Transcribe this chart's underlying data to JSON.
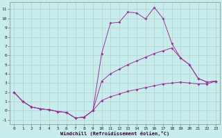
{
  "xlabel": "Windchill (Refroidissement éolien,°C)",
  "background_color": "#c8ecec",
  "grid_color": "#b0d0d0",
  "line_color": "#993399",
  "xlim": [
    -0.5,
    23.5
  ],
  "ylim": [
    -1.5,
    11.8
  ],
  "xticks": [
    0,
    1,
    2,
    3,
    4,
    5,
    6,
    7,
    8,
    9,
    10,
    11,
    12,
    13,
    14,
    15,
    16,
    17,
    18,
    19,
    20,
    21,
    22,
    23
  ],
  "yticks": [
    -1,
    0,
    1,
    2,
    3,
    4,
    5,
    6,
    7,
    8,
    9,
    10,
    11
  ],
  "line1_x": [
    0,
    1,
    2,
    3,
    4,
    5,
    6,
    7,
    8,
    9,
    10,
    11,
    12,
    13,
    14,
    15,
    16,
    17,
    18,
    19,
    20,
    21,
    22,
    23
  ],
  "line1_y": [
    2.0,
    1.0,
    0.4,
    0.2,
    0.1,
    -0.1,
    -0.2,
    -0.8,
    -0.7,
    0.0,
    6.2,
    9.5,
    9.6,
    10.7,
    10.6,
    9.95,
    11.2,
    10.0,
    7.3,
    5.7,
    5.0,
    3.5,
    3.1,
    3.2
  ],
  "line2_x": [
    0,
    1,
    2,
    3,
    4,
    5,
    6,
    7,
    8,
    9,
    10,
    11,
    12,
    13,
    14,
    15,
    16,
    17,
    18,
    19,
    20,
    21,
    22,
    23
  ],
  "line2_y": [
    2.0,
    1.0,
    0.4,
    0.2,
    0.1,
    -0.1,
    -0.2,
    -0.8,
    -0.7,
    0.0,
    3.2,
    4.0,
    4.5,
    5.0,
    5.4,
    5.8,
    6.2,
    6.5,
    6.8,
    5.7,
    5.0,
    3.5,
    3.1,
    3.2
  ],
  "line3_x": [
    0,
    1,
    2,
    3,
    4,
    5,
    6,
    7,
    8,
    9,
    10,
    11,
    12,
    13,
    14,
    15,
    16,
    17,
    18,
    19,
    20,
    21,
    22,
    23
  ],
  "line3_y": [
    2.0,
    1.0,
    0.4,
    0.2,
    0.1,
    -0.1,
    -0.2,
    -0.8,
    -0.7,
    0.0,
    1.1,
    1.5,
    1.8,
    2.1,
    2.3,
    2.5,
    2.7,
    2.9,
    3.0,
    3.1,
    3.0,
    2.9,
    2.9,
    3.2
  ]
}
